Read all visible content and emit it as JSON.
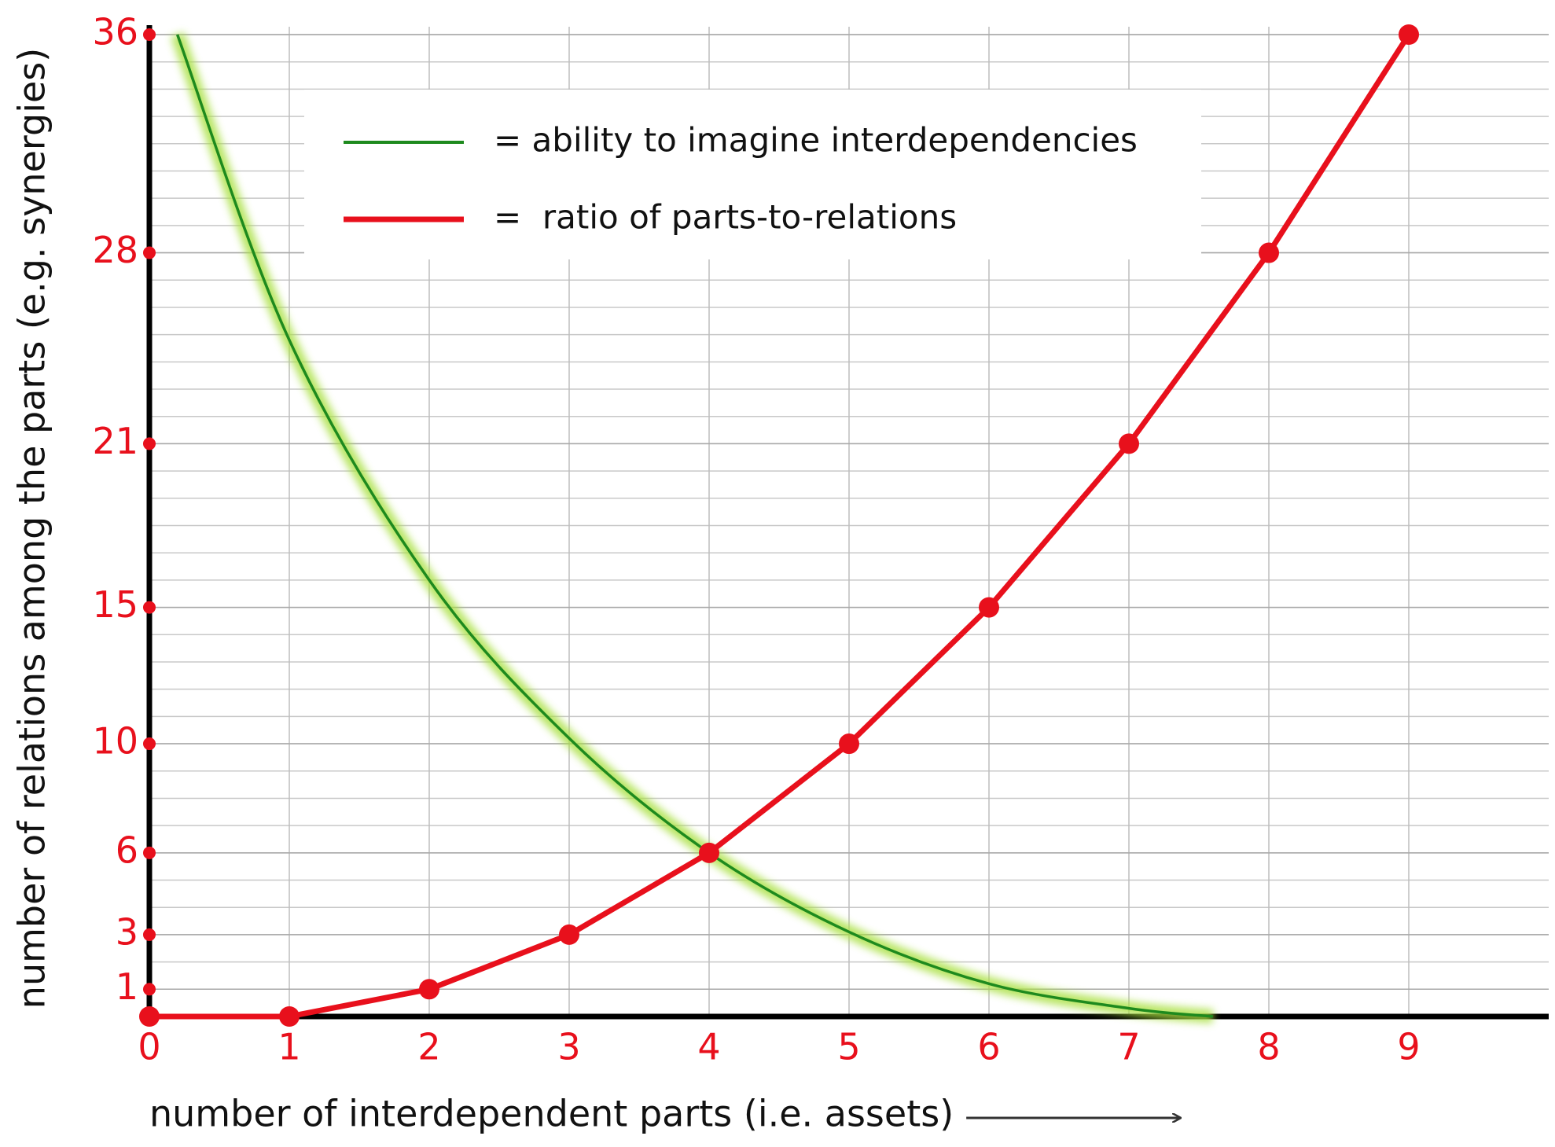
{
  "chart_data": {
    "type": "line",
    "x_label": "number of interdependent parts (i.e. assets)",
    "y_label": "number of relations among the parts (e.g. synergies)",
    "series": [
      {
        "name": "= ability to imagine interdependencies",
        "color": "#1e8a1e",
        "glow": "#a8e040",
        "x": [
          0.2,
          1,
          2,
          3,
          4,
          5,
          6,
          7,
          7.6
        ],
        "values": [
          36,
          24.8,
          16,
          10.2,
          6,
          3.1,
          1.2,
          0.3,
          0
        ],
        "markers": false
      },
      {
        "name": "=  ratio of parts-to-relations",
        "color": "#e8101c",
        "x": [
          0,
          1,
          2,
          3,
          4,
          5,
          6,
          7,
          8,
          9
        ],
        "values": [
          0,
          0,
          1,
          3,
          6,
          10,
          15,
          21,
          28,
          36
        ],
        "markers": true
      }
    ],
    "xlim": [
      0,
      10
    ],
    "xticks": [
      0,
      1,
      2,
      3,
      4,
      5,
      6,
      7,
      8,
      9
    ],
    "ylim": [
      0,
      36
    ],
    "yticks": [
      1,
      3,
      6,
      10,
      15,
      21,
      28,
      36
    ],
    "grid": true
  }
}
